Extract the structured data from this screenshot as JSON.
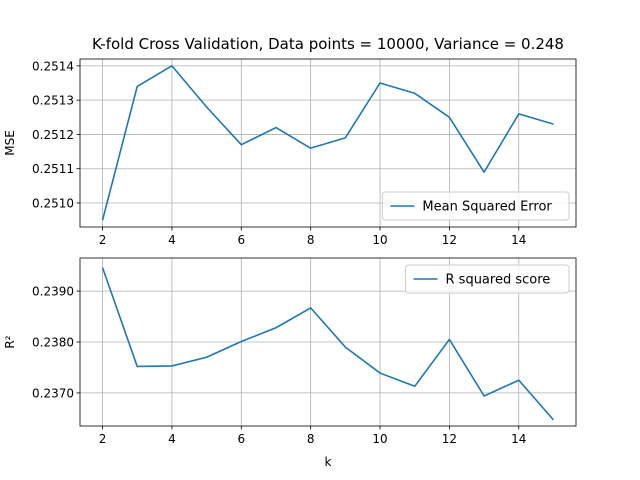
{
  "chart_data": [
    {
      "type": "line",
      "title": "K-fold Cross Validation, Data points = 10000, Variance = 0.248",
      "xlabel": "",
      "ylabel": "MSE",
      "xlim": [
        1.35,
        15.65
      ],
      "ylim": [
        0.25093,
        0.25142
      ],
      "grid": true,
      "legend_position": "lower-right",
      "xticks": [
        2,
        4,
        6,
        8,
        10,
        12,
        14
      ],
      "yticks": [
        0.251,
        0.2511,
        0.2512,
        0.2513,
        0.2514
      ],
      "ytick_decimals": 4,
      "color": "#1f77b4",
      "series": [
        {
          "name": "Mean Squared Error",
          "x": [
            2,
            3,
            4,
            5,
            6,
            7,
            8,
            9,
            10,
            11,
            12,
            13,
            14,
            15
          ],
          "values": [
            0.25095,
            0.25134,
            0.2514,
            0.25128,
            0.25117,
            0.25122,
            0.25116,
            0.25119,
            0.25135,
            0.25132,
            0.25125,
            0.25109,
            0.25126,
            0.25123
          ]
        }
      ]
    },
    {
      "type": "line",
      "title": "",
      "xlabel": "k",
      "ylabel": "R²",
      "xlim": [
        1.35,
        15.65
      ],
      "ylim": [
        0.23635,
        0.23965
      ],
      "grid": true,
      "legend_position": "upper-right",
      "xticks": [
        2,
        4,
        6,
        8,
        10,
        12,
        14
      ],
      "yticks": [
        0.237,
        0.238,
        0.239
      ],
      "ytick_decimals": 4,
      "color": "#1f77b4",
      "series": [
        {
          "name": "R squared score",
          "x": [
            2,
            3,
            4,
            5,
            6,
            7,
            8,
            9,
            10,
            11,
            12,
            13,
            14,
            15
          ],
          "values": [
            0.23946,
            0.23752,
            0.23753,
            0.2377,
            0.23801,
            0.23828,
            0.23867,
            0.2379,
            0.23739,
            0.23713,
            0.23805,
            0.23694,
            0.23725,
            0.23647
          ]
        }
      ]
    }
  ]
}
